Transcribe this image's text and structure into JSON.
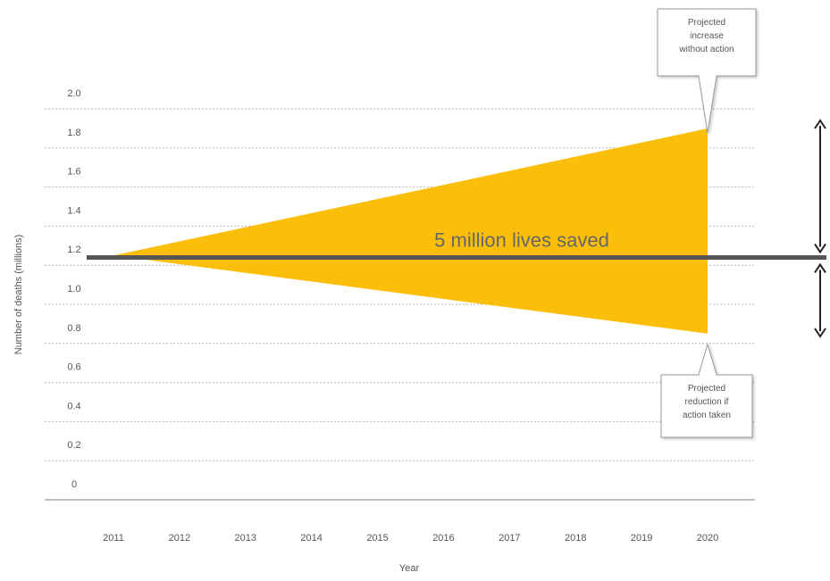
{
  "chart_data": {
    "type": "area",
    "title": "",
    "xlabel": "Year",
    "ylabel": "Number of deaths (millions)",
    "x_ticks": [
      "2011",
      "2012",
      "2013",
      "2014",
      "2015",
      "2016",
      "2017",
      "2018",
      "2019",
      "2020"
    ],
    "y_ticks": [
      "2.0",
      "1.8",
      "1.6",
      "1.4",
      "1.2",
      "1.0",
      "0.8",
      "0.6",
      "0.4",
      "0.2",
      "0"
    ],
    "ylim": [
      0,
      2.0
    ],
    "xlim": [
      2011,
      2020
    ],
    "grid": true,
    "series": [
      {
        "name": "Projected increase without action",
        "x": [
          2011,
          2020
        ],
        "values": [
          1.25,
          1.9
        ]
      },
      {
        "name": "Projected reduction if action taken",
        "x": [
          2011,
          2020
        ],
        "values": [
          1.25,
          0.85
        ]
      }
    ],
    "baseline": {
      "value": 1.24,
      "label": "5 million lives saved"
    },
    "annotations": {
      "increase": "Projected increase without action",
      "reduction": "Projected reduction if action taken"
    },
    "colors": {
      "area": "#fbbf0a",
      "grid": "#b5b5b5",
      "baseline": "#555555",
      "text": "#555555",
      "callout_border": "#9a9a9a",
      "arrow": "#222222"
    }
  }
}
